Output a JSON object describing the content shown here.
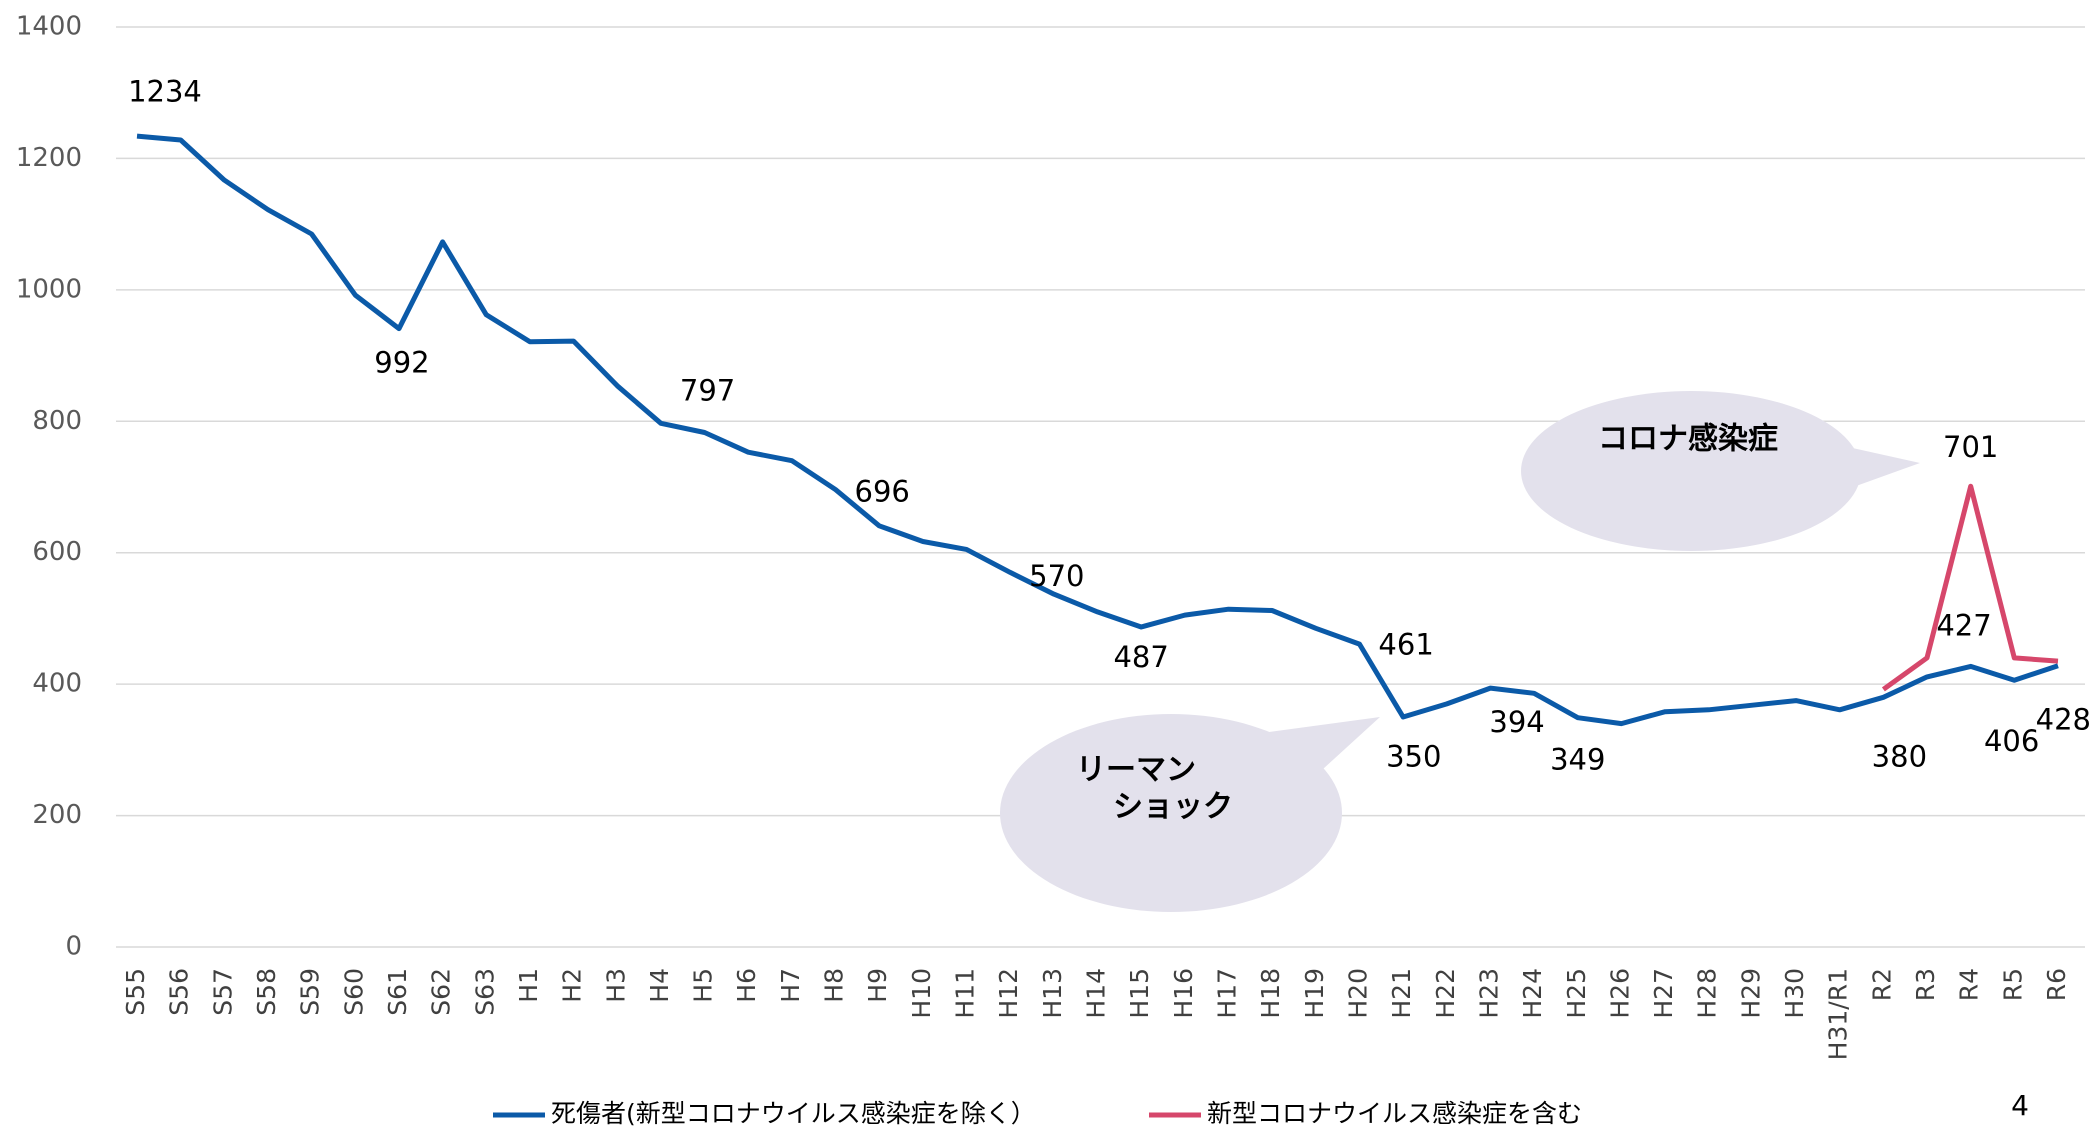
{
  "chart_data": {
    "type": "line",
    "categories": [
      "S55",
      "S56",
      "S57",
      "S58",
      "S59",
      "S60",
      "S61",
      "S62",
      "S63",
      "H1",
      "H2",
      "H3",
      "H4",
      "H5",
      "H6",
      "H7",
      "H8",
      "H9",
      "H10",
      "H11",
      "H12",
      "H13",
      "H14",
      "H15",
      "H16",
      "H17",
      "H18",
      "H19",
      "H20",
      "H21",
      "H22",
      "H23",
      "H24",
      "H25",
      "H26",
      "H27",
      "H28",
      "H29",
      "H30",
      "H31/R1",
      "R2",
      "R3",
      "R4",
      "R5",
      "R6"
    ],
    "series": [
      {
        "name": "死傷者(新型コロナウイルス感染症を除く）",
        "color": "#0b5aa8",
        "values": [
          1234,
          1228,
          1167,
          1122,
          1085,
          992,
          941,
          1073,
          962,
          921,
          922,
          854,
          797,
          783,
          753,
          740,
          696,
          641,
          617,
          605,
          570,
          537,
          510,
          487,
          505,
          514,
          512,
          485,
          461,
          350,
          370,
          394,
          386,
          349,
          340,
          358,
          361,
          368,
          375,
          361,
          380,
          411,
          427,
          406,
          428
        ],
        "value_labels": [
          "1234",
          null,
          null,
          null,
          null,
          "992",
          null,
          null,
          null,
          null,
          null,
          null,
          "797",
          null,
          null,
          null,
          "696",
          null,
          null,
          null,
          "570",
          null,
          null,
          "487",
          null,
          null,
          null,
          null,
          "461",
          "350",
          null,
          "394",
          null,
          "349",
          null,
          null,
          null,
          null,
          null,
          null,
          "380",
          null,
          "427",
          "406",
          "428"
        ]
      },
      {
        "name": "新型コロナウイルス感染症を含む",
        "color": "#d6476b",
        "values": [
          null,
          null,
          null,
          null,
          null,
          null,
          null,
          null,
          null,
          null,
          null,
          null,
          null,
          null,
          null,
          null,
          null,
          null,
          null,
          null,
          null,
          null,
          null,
          null,
          null,
          null,
          null,
          null,
          null,
          null,
          null,
          null,
          null,
          null,
          null,
          null,
          null,
          null,
          null,
          null,
          392,
          440,
          701,
          440,
          435
        ],
        "value_labels": [
          null,
          null,
          null,
          null,
          null,
          null,
          null,
          null,
          null,
          null,
          null,
          null,
          null,
          null,
          null,
          null,
          null,
          null,
          null,
          null,
          null,
          null,
          null,
          null,
          null,
          null,
          null,
          null,
          null,
          null,
          null,
          null,
          null,
          null,
          null,
          null,
          null,
          null,
          null,
          null,
          null,
          null,
          "701",
          null,
          null
        ]
      }
    ],
    "ylim": [
      0,
      1400
    ],
    "yticks": [
      0,
      200,
      400,
      600,
      800,
      1000,
      1200,
      1400
    ],
    "grid": true,
    "annotations": [
      "コロナ感染症",
      [
        "リーマン",
        "ショック"
      ]
    ],
    "page_number": "4"
  }
}
